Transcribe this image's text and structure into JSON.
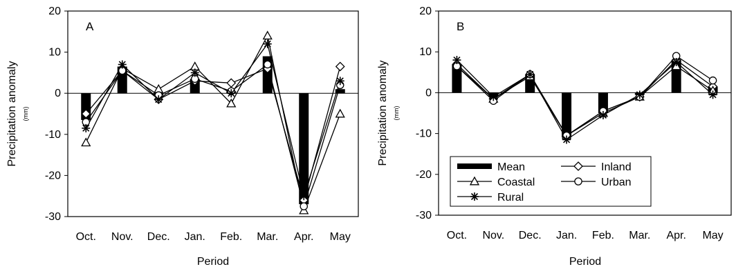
{
  "chart_data": [
    {
      "type": "line",
      "panel_label": "A",
      "categories": [
        "Oct.",
        "Nov.",
        "Dec.",
        "Jan.",
        "Feb.",
        "Mar.",
        "Apr.",
        "May"
      ],
      "xlabel": "Period",
      "ylabel": "Precipitation anomaly",
      "ylabel_unit": "(mm)",
      "ylim": [
        -30,
        20
      ],
      "yticks": [
        -30,
        -20,
        -10,
        0,
        10,
        20
      ],
      "grid": false,
      "series": [
        {
          "name": "Mean",
          "type": "bar",
          "values": [
            -6.5,
            6.5,
            -0.5,
            3.5,
            0.5,
            9.0,
            -27.0,
            1.0
          ]
        },
        {
          "name": "Inland",
          "marker": "diamond",
          "values": [
            -5,
            5.5,
            -1.5,
            3,
            2.5,
            6,
            -26,
            6.5
          ]
        },
        {
          "name": "Coastal",
          "marker": "triangle",
          "values": [
            -12,
            6,
            1,
            6.5,
            -2.5,
            14,
            -28.5,
            -5
          ]
        },
        {
          "name": "Urban",
          "marker": "circle",
          "values": [
            -7,
            5.5,
            -0.5,
            3.5,
            0.5,
            7,
            -27.5,
            2
          ]
        },
        {
          "name": "Rural",
          "marker": "asterisk",
          "values": [
            -8.5,
            7,
            -1.5,
            5,
            0,
            12,
            -25,
            3
          ]
        }
      ]
    },
    {
      "type": "line",
      "panel_label": "B",
      "categories": [
        "Oct.",
        "Nov.",
        "Dec.",
        "Jan.",
        "Feb.",
        "Mar.",
        "Apr.",
        "May"
      ],
      "xlabel": "Period",
      "ylabel": "Precipitation anomaly",
      "ylabel_unit": "(mm)",
      "ylim": [
        -30,
        20
      ],
      "yticks": [
        -30,
        -20,
        -10,
        0,
        10,
        20
      ],
      "grid": false,
      "legend_position": "bottom-left",
      "series": [
        {
          "name": "Mean",
          "type": "bar",
          "values": [
            7,
            -1,
            4.5,
            -11,
            -5,
            -0.5,
            8,
            1.5
          ]
        },
        {
          "name": "Inland",
          "marker": "diamond",
          "values": [
            7,
            -1.5,
            4.5,
            -10.5,
            -4.5,
            -1,
            8,
            1.5
          ]
        },
        {
          "name": "Coastal",
          "marker": "triangle",
          "values": [
            6.5,
            -1.5,
            4,
            -10.5,
            -5,
            -1,
            6.5,
            0.5
          ]
        },
        {
          "name": "Urban",
          "marker": "circle",
          "values": [
            6.5,
            -2,
            4.5,
            -10.5,
            -4.5,
            -1,
            9,
            3
          ]
        },
        {
          "name": "Rural",
          "marker": "asterisk",
          "values": [
            8,
            -1,
            4.5,
            -11.5,
            -5.5,
            -0.5,
            7.5,
            -0.5
          ]
        }
      ]
    }
  ]
}
